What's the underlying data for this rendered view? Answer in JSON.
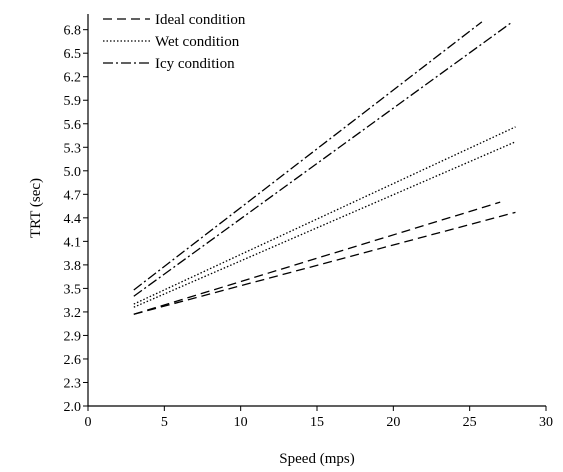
{
  "chart_data": {
    "type": "line",
    "xlabel": "Speed (mps)",
    "ylabel": "TRT (sec)",
    "xlim": [
      0,
      30
    ],
    "ylim": [
      2.0,
      7.0
    ],
    "xticks": [
      0,
      5,
      10,
      15,
      20,
      25,
      30
    ],
    "yticks": [
      2.0,
      2.3,
      2.6,
      2.9,
      3.2,
      3.5,
      3.8,
      4.1,
      4.4,
      4.7,
      5.0,
      5.3,
      5.6,
      5.9,
      6.2,
      6.5,
      6.8
    ],
    "grid": false,
    "legend_position": "top-left",
    "legend": [
      {
        "label": "Ideal condition",
        "style": "dashed"
      },
      {
        "label": "Wet condition",
        "style": "dotted"
      },
      {
        "label": "Icy condition",
        "style": "dashdot"
      }
    ],
    "series": [
      {
        "condition": "Ideal condition",
        "style": "dashed",
        "x": [
          3,
          27
        ],
        "y": [
          3.17,
          4.6
        ]
      },
      {
        "condition": "Ideal condition",
        "style": "dashed",
        "x": [
          3,
          28
        ],
        "y": [
          3.17,
          4.47
        ]
      },
      {
        "condition": "Wet condition",
        "style": "dotted",
        "x": [
          3,
          28
        ],
        "y": [
          3.3,
          5.56
        ]
      },
      {
        "condition": "Wet condition",
        "style": "dotted",
        "x": [
          3,
          28
        ],
        "y": [
          3.26,
          5.37
        ]
      },
      {
        "condition": "Icy condition",
        "style": "dashdot",
        "x": [
          3,
          25.8
        ],
        "y": [
          3.48,
          6.9
        ]
      },
      {
        "condition": "Icy condition",
        "style": "dashdot",
        "x": [
          3,
          27.8
        ],
        "y": [
          3.4,
          6.9
        ]
      }
    ]
  }
}
